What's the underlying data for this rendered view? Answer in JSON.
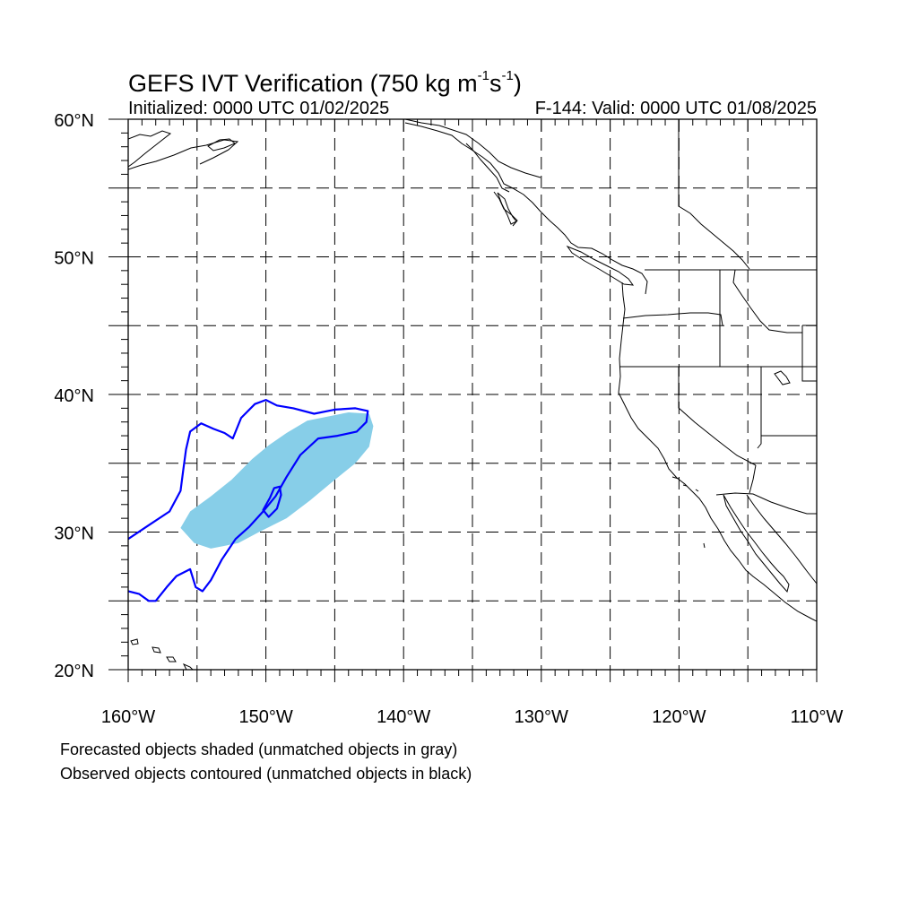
{
  "title": {
    "main": "GEFS IVT Verification (750 kg m",
    "sup1": "-1",
    "mid": "s",
    "sup2": "-1",
    "end": ")"
  },
  "initialized": "Initialized: 0000 UTC 01/02/2025",
  "valid": "F-144: Valid: 0000 UTC 01/08/2025",
  "notes": {
    "forecast": "Forecasted objects shaded (unmatched objects in gray)",
    "observed": "Observed objects contoured (unmatched objects in black)"
  },
  "map": {
    "lon_range": [
      -160,
      -110
    ],
    "lat_range": [
      20,
      60
    ],
    "lat_labels": [
      "20°N",
      "30°N",
      "40°N",
      "50°N",
      "60°N"
    ],
    "lon_labels": [
      "160°W",
      "150°W",
      "140°W",
      "130°W",
      "120°W",
      "110°W"
    ],
    "gridlines": "dashed every 5 degrees",
    "colors": {
      "forecast_fill": "#87cee8",
      "observed_contour": "#0000ff",
      "coastline": "#000000"
    },
    "forecast_object": {
      "name": "forecast-ivt-object",
      "points": [
        [
          -156.2,
          30.3
        ],
        [
          -155.5,
          31.5
        ],
        [
          -154,
          32.6
        ],
        [
          -152.5,
          33.8
        ],
        [
          -151,
          35.3
        ],
        [
          -149.8,
          36.3
        ],
        [
          -148.5,
          37.2
        ],
        [
          -147,
          38.1
        ],
        [
          -145.5,
          38.4
        ],
        [
          -144,
          38.7
        ],
        [
          -142.5,
          38.6
        ],
        [
          -142.2,
          37.7
        ],
        [
          -142.5,
          36.2
        ],
        [
          -143.5,
          35
        ],
        [
          -145,
          33.8
        ],
        [
          -146.8,
          32.3
        ],
        [
          -148.5,
          31
        ],
        [
          -150.5,
          30
        ],
        [
          -152,
          29.2
        ],
        [
          -154,
          28.8
        ],
        [
          -155.2,
          29.2
        ]
      ]
    },
    "observed_object": {
      "name": "observed-ivt-object",
      "outer": [
        [
          -160,
          29.5
        ],
        [
          -158.5,
          30.5
        ],
        [
          -157,
          31.5
        ],
        [
          -156.2,
          33
        ],
        [
          -156,
          34.5
        ],
        [
          -155.8,
          36
        ],
        [
          -155.5,
          37.3
        ],
        [
          -154.7,
          37.9
        ],
        [
          -153.8,
          37.5
        ],
        [
          -153,
          37.2
        ],
        [
          -152.4,
          36.8
        ],
        [
          -151.8,
          38.3
        ],
        [
          -150.8,
          39.3
        ],
        [
          -150,
          39.6
        ],
        [
          -149.2,
          39.2
        ],
        [
          -148,
          39
        ],
        [
          -146.5,
          38.6
        ],
        [
          -145,
          38.9
        ],
        [
          -143.5,
          39
        ],
        [
          -142.6,
          38.8
        ],
        [
          -142.7,
          38
        ],
        [
          -143.4,
          37.3
        ],
        [
          -144.8,
          37
        ],
        [
          -146.2,
          36.8
        ],
        [
          -147.5,
          35.6
        ],
        [
          -148.5,
          34
        ],
        [
          -149.3,
          32.6
        ],
        [
          -150.2,
          31.5
        ],
        [
          -151.2,
          30.4
        ],
        [
          -152.2,
          29.5
        ],
        [
          -153.2,
          28
        ],
        [
          -154,
          26.5
        ],
        [
          -154.6,
          25.7
        ],
        [
          -155.1,
          26
        ],
        [
          -155.5,
          27.3
        ],
        [
          -156.5,
          26.8
        ],
        [
          -157.2,
          26
        ],
        [
          -158,
          25
        ],
        [
          -158.5,
          25
        ],
        [
          -159.2,
          25.5
        ],
        [
          -160,
          25.7
        ]
      ],
      "inner": [
        [
          -149,
          33.3
        ],
        [
          -148.9,
          32.7
        ],
        [
          -149.2,
          31.7
        ],
        [
          -149.8,
          31.1
        ],
        [
          -150.2,
          31.6
        ],
        [
          -149.7,
          32.5
        ],
        [
          -149.4,
          33.2
        ]
      ]
    }
  }
}
